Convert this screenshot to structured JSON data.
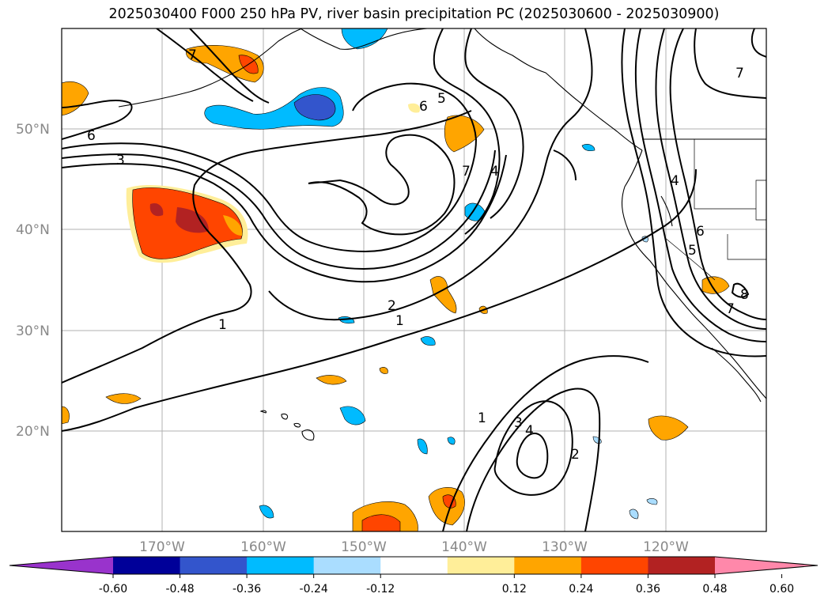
{
  "title": "2025030400 F000 250 hPa PV, river basin precipitation PC (2025030600 - 2025030900)",
  "map": {
    "lat_labels": [
      "50°N",
      "40°N",
      "30°N",
      "20°N"
    ],
    "lon_labels": [
      "170°W",
      "160°W",
      "150°W",
      "140°W",
      "130°W",
      "120°W"
    ]
  },
  "contour_labels": [
    {
      "text": "6"
    },
    {
      "text": "3"
    },
    {
      "text": "1"
    },
    {
      "text": "2"
    },
    {
      "text": "1"
    },
    {
      "text": "7"
    },
    {
      "text": "6"
    },
    {
      "text": "5"
    },
    {
      "text": "7"
    },
    {
      "text": "4"
    },
    {
      "text": "1"
    },
    {
      "text": "3"
    },
    {
      "text": "4"
    },
    {
      "text": "2"
    },
    {
      "text": "4"
    },
    {
      "text": "6"
    },
    {
      "text": "5"
    },
    {
      "text": "7"
    },
    {
      "text": "8"
    },
    {
      "text": "7"
    }
  ],
  "colorbar": {
    "colors": [
      "#9933cc",
      "#000099",
      "#3355cc",
      "#00bbff",
      "#aaddff",
      "#ffffff",
      "#ffee99",
      "#ffa500",
      "#ff4500",
      "#b22222",
      "#ff88aa"
    ],
    "labels": [
      "-0.60",
      "-0.48",
      "-0.36",
      "-0.24",
      "-0.12",
      "0.12",
      "0.24",
      "0.36",
      "0.48",
      "0.60"
    ]
  }
}
